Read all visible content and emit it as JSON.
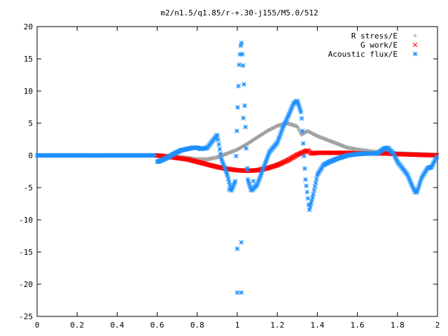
{
  "chart_data": {
    "type": "scatter",
    "title": "m2/n1.5/q1.85/r-+.30-j155/M5.0/512",
    "xlabel": "",
    "ylabel": "",
    "xlim": [
      0,
      2
    ],
    "ylim": [
      -25,
      20
    ],
    "x_ticks": [
      "0",
      "0.2",
      "0.4",
      "0.6",
      "0.8",
      "1",
      "1.2",
      "1.4",
      "1.6",
      "1.8",
      "2"
    ],
    "y_ticks": [
      "20",
      "15",
      "10",
      "5",
      "0",
      "-5",
      "-10",
      "-15",
      "-20",
      "-25"
    ],
    "grid": false,
    "legend_position": "top-right",
    "series": [
      {
        "name": "R stress/E",
        "marker": "plus",
        "color": "#a0a0a0",
        "x": [
          0.6,
          0.65,
          0.7,
          0.75,
          0.8,
          0.85,
          0.9,
          0.95,
          1.0,
          1.05,
          1.1,
          1.15,
          1.2,
          1.25,
          1.3,
          1.32,
          1.35,
          1.4,
          1.45,
          1.5,
          1.55,
          1.6,
          1.65,
          1.7,
          1.75,
          1.8,
          1.85,
          1.9,
          1.95,
          2.0
        ],
        "y": [
          0,
          -0.1,
          -0.2,
          -0.4,
          -0.6,
          -0.6,
          -0.3,
          0.3,
          0.9,
          1.8,
          2.8,
          3.8,
          4.6,
          5.0,
          4.5,
          3.2,
          3.8,
          3.0,
          2.4,
          1.8,
          1.2,
          0.9,
          0.7,
          0.5,
          0.4,
          0.3,
          0.25,
          0.2,
          0.15,
          0.1
        ]
      },
      {
        "name": "G work/E",
        "marker": "cross",
        "color": "#ff0000",
        "x": [
          0.6,
          0.65,
          0.7,
          0.75,
          0.8,
          0.85,
          0.9,
          0.95,
          1.0,
          1.05,
          1.1,
          1.15,
          1.2,
          1.25,
          1.3,
          1.35,
          1.37,
          1.4,
          1.45,
          1.5,
          1.55,
          1.6,
          1.65,
          1.7,
          1.75,
          1.8,
          1.85,
          1.9,
          1.95,
          2.0
        ],
        "y": [
          0,
          -0.2,
          -0.4,
          -0.6,
          -1.0,
          -1.4,
          -1.8,
          -2.1,
          -2.3,
          -2.4,
          -2.3,
          -2.0,
          -1.5,
          -0.8,
          0.1,
          0.8,
          0.3,
          0.4,
          0.4,
          0.4,
          0.4,
          0.3,
          0.3,
          0.3,
          0.3,
          0.2,
          0.15,
          0.1,
          0.05,
          0.0
        ]
      },
      {
        "name": "Acoustic flux/E",
        "marker": "star",
        "color": "#1e90ff",
        "x": [
          0.6,
          0.62,
          0.64,
          0.66,
          0.68,
          0.7,
          0.72,
          0.75,
          0.78,
          0.8,
          0.82,
          0.85,
          0.87,
          0.9,
          0.92,
          0.95,
          0.97,
          0.99,
          1.0,
          1.01,
          1.02,
          1.03,
          1.05,
          1.07,
          1.1,
          1.13,
          1.16,
          1.2,
          1.23,
          1.26,
          1.28,
          1.3,
          1.32,
          1.34,
          1.36,
          1.38,
          1.4,
          1.43,
          1.46,
          1.5,
          1.55,
          1.6,
          1.65,
          1.7,
          1.73,
          1.75,
          1.78,
          1.8,
          1.82,
          1.85,
          1.87,
          1.89,
          1.9,
          1.92,
          1.95,
          1.97,
          2.0
        ],
        "y": [
          -1.0,
          -0.8,
          -0.5,
          -0.2,
          0.2,
          0.5,
          0.8,
          1.0,
          1.2,
          1.2,
          1.0,
          1.2,
          2.0,
          3.2,
          -0.5,
          -3.0,
          -5.5,
          -4.0,
          6.0,
          14.5,
          18.0,
          13.5,
          -3.5,
          -5.5,
          -4.5,
          -2.0,
          0.5,
          2.0,
          4.5,
          6.5,
          8.0,
          8.5,
          6.5,
          -3.5,
          -8.5,
          -6.0,
          -3.0,
          -1.5,
          -1.0,
          -0.5,
          0.0,
          0.2,
          0.3,
          0.3,
          1.0,
          1.2,
          0.3,
          -1.0,
          -1.8,
          -3.0,
          -4.5,
          -5.8,
          -5.5,
          -3.5,
          -2.0,
          -1.8,
          0.0
        ]
      }
    ],
    "extra_points": {
      "Acoustic flux/E": [
        {
          "x": 1.0,
          "y": -14.5
        },
        {
          "x": 1.02,
          "y": -13.5
        },
        {
          "x": 1.0,
          "y": -21.3
        },
        {
          "x": 1.02,
          "y": -21.3
        },
        {
          "x": 1.03,
          "y": 5.8
        },
        {
          "x": 0.96,
          "y": -5.3
        },
        {
          "x": 1.05,
          "y": -2.0
        },
        {
          "x": 1.08,
          "y": -4.0
        }
      ]
    }
  }
}
